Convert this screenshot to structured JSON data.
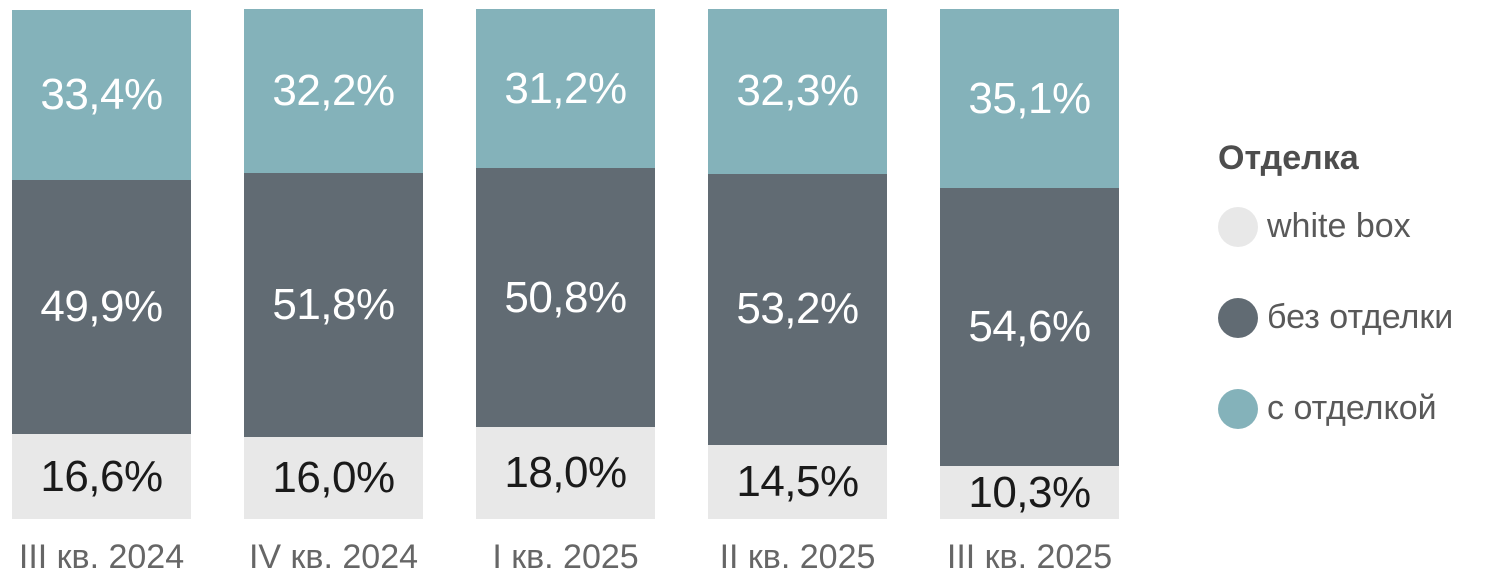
{
  "chart_data": {
    "type": "bar",
    "variant": "stacked-100-percent",
    "title": "",
    "legend": {
      "title": "Отделка",
      "position": "right"
    },
    "categories": [
      "III кв. 2024",
      "IV кв. 2024",
      "I кв. 2025",
      "II кв. 2025",
      "III кв. 2025"
    ],
    "series": [
      {
        "name": "white box",
        "color": "#e8e8e8",
        "label_color": "#1a1a1a",
        "values": [
          16.6,
          16.0,
          18.0,
          14.5,
          10.3
        ],
        "labels": [
          "16,6%",
          "16,0%",
          "18,0%",
          "14,5%",
          "10,3%"
        ]
      },
      {
        "name": "без отделки",
        "color": "#616b73",
        "label_color": "#ffffff",
        "values": [
          49.9,
          51.8,
          50.8,
          53.2,
          54.6
        ],
        "labels": [
          "49,9%",
          "51,8%",
          "50,8%",
          "53,2%",
          "54,6%"
        ]
      },
      {
        "name": "с отделкой",
        "color": "#84b2ba",
        "label_color": "#ffffff",
        "values": [
          33.4,
          32.2,
          31.2,
          32.3,
          35.1
        ],
        "labels": [
          "33,4%",
          "32,2%",
          "31,2%",
          "32,3%",
          "35,1%"
        ]
      }
    ],
    "axis": {
      "x_label_color": "#666666"
    },
    "ylim": [
      0,
      100
    ],
    "grid": false
  }
}
